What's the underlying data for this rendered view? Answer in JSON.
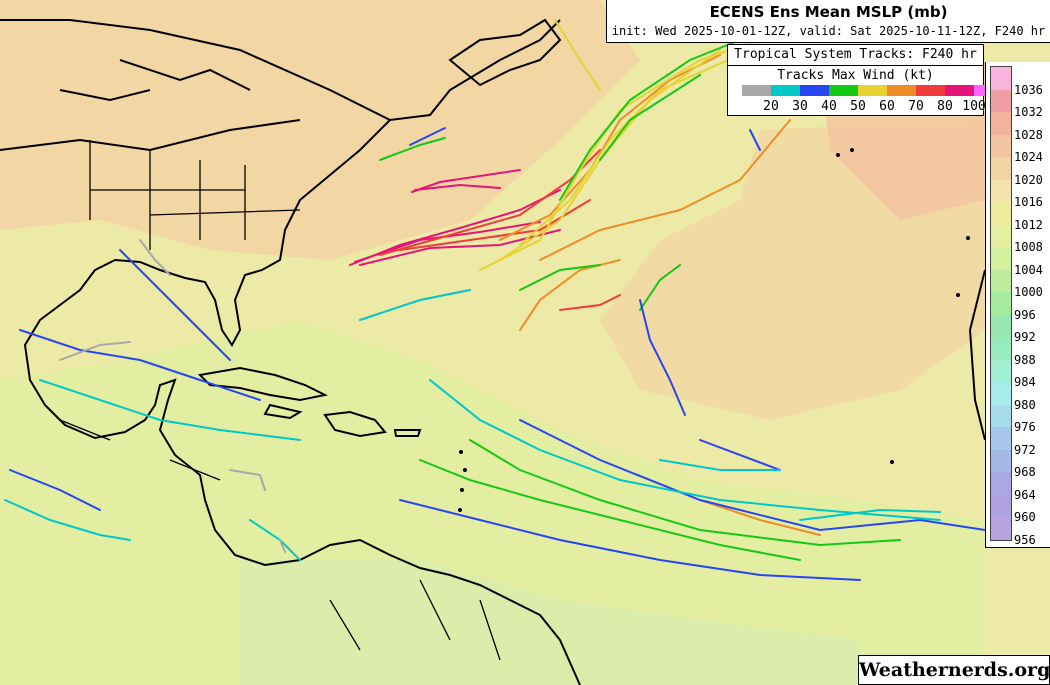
{
  "header": {
    "title": "ECENS Ens Mean MSLP (mb)",
    "subtitle": "init: Wed 2025-10-01-12Z, valid: Sat 2025-10-11-12Z, F240 hr"
  },
  "tracks_legend": {
    "title": "Tropical System Tracks: F240 hr",
    "wind_title": "Tracks Max Wind (kt)",
    "bins": [
      {
        "color": "#a8a8a8"
      },
      {
        "color": "#00c8c8"
      },
      {
        "color": "#2846f0"
      },
      {
        "color": "#14c814"
      },
      {
        "color": "#e6d232"
      },
      {
        "color": "#f08c28"
      },
      {
        "color": "#f03c3c"
      },
      {
        "color": "#e6147a"
      },
      {
        "color": "#ff64ff"
      }
    ],
    "tick_labels": [
      "20",
      "30",
      "40",
      "50",
      "60",
      "70",
      "80",
      "100"
    ]
  },
  "mslp_legend": {
    "levels": [
      "1036",
      "1032",
      "1028",
      "1024",
      "1020",
      "1016",
      "1012",
      "1008",
      "1004",
      "1000",
      "996",
      "992",
      "988",
      "984",
      "980",
      "976",
      "972",
      "968",
      "964",
      "960",
      "956"
    ],
    "colors": [
      "#f7b4dc",
      "#f0a0a4",
      "#f3b29c",
      "#f4c4a0",
      "#f3d2a4",
      "#f3e1ae",
      "#ecec9c",
      "#e4f09e",
      "#d4f09e",
      "#bcec9c",
      "#a6ec9e",
      "#96e8ae",
      "#96ecbe",
      "#a2f0d2",
      "#a6ecec",
      "#a6dcec",
      "#a6c8ec",
      "#a6b8e8",
      "#aaa8e4",
      "#b0a2e0",
      "#b8a2e0"
    ]
  },
  "map": {
    "colors": {
      "ocean_base": "#ede9a6",
      "high_pressure": "#f2d7a4",
      "low_pressure": "#dff0a9",
      "land_outline": "#000000"
    }
  },
  "credit": "Weathernerds.org"
}
